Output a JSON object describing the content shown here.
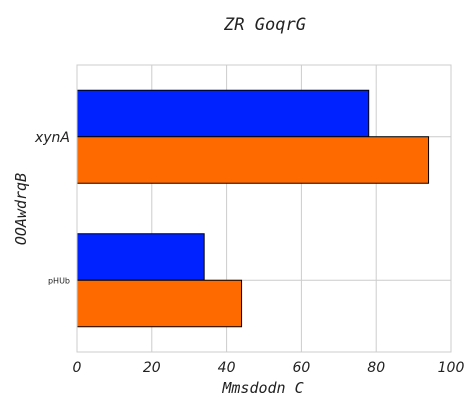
{
  "chart_data": {
    "type": "bar",
    "orientation": "horizontal",
    "title": "ZR GoqrG",
    "xlabel": "Mmsdodn C",
    "ylabel": "OOAwdrqB",
    "xlim": [
      0,
      100
    ],
    "xticks": [
      0,
      20,
      40,
      60,
      80,
      100
    ],
    "xtick_labels": [
      "0",
      "20",
      "40",
      "60",
      "80",
      "100"
    ],
    "grid": true,
    "categories": [
      "pHUb",
      "xynA"
    ],
    "series": [
      {
        "color": "#0022ff",
        "values": [
          34,
          78
        ]
      },
      {
        "color": "#ff6a00",
        "values": [
          44,
          94
        ]
      }
    ]
  }
}
